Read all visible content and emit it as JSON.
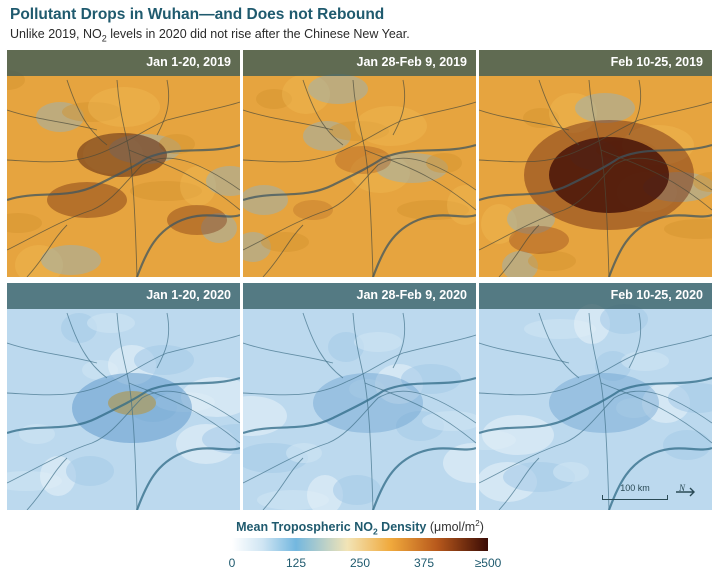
{
  "title": "Pollutant Drops in Wuhan—and Does not Rebound",
  "subtitle": {
    "before": "Unlike 2019, NO",
    "sub": "2",
    "after": " levels in 2020 did not rise after the Chinese New Year."
  },
  "panels": [
    {
      "label": "Jan 1-20, 2019",
      "theme": "orange",
      "intensity": "high"
    },
    {
      "label": "Jan 28-Feb 9, 2019",
      "theme": "orange",
      "intensity": "low"
    },
    {
      "label": "Feb 10-25, 2019",
      "theme": "orange",
      "intensity": "very-high"
    },
    {
      "label": "Jan 1-20, 2020",
      "theme": "blue",
      "intensity": "medium"
    },
    {
      "label": "Jan 28-Feb 9, 2020",
      "theme": "blue",
      "intensity": "low"
    },
    {
      "label": "Feb 10-25, 2020",
      "theme": "blue",
      "intensity": "low"
    }
  ],
  "scale_bar": {
    "label": "100 km"
  },
  "north_arrow": {
    "label": "N"
  },
  "legend": {
    "title_prefix": "Mean Tropospheric NO",
    "title_sub": "2",
    "title_suffix": " Density",
    "unit_prefix": "(μmol/m",
    "unit_sup": "2",
    "unit_suffix": ")",
    "ticks": [
      "0",
      "125",
      "250",
      "375",
      "≥500"
    ],
    "colors": [
      "#ffffff",
      "#73b7df",
      "#f0a93c",
      "#b8591c",
      "#3a0b05"
    ]
  }
}
